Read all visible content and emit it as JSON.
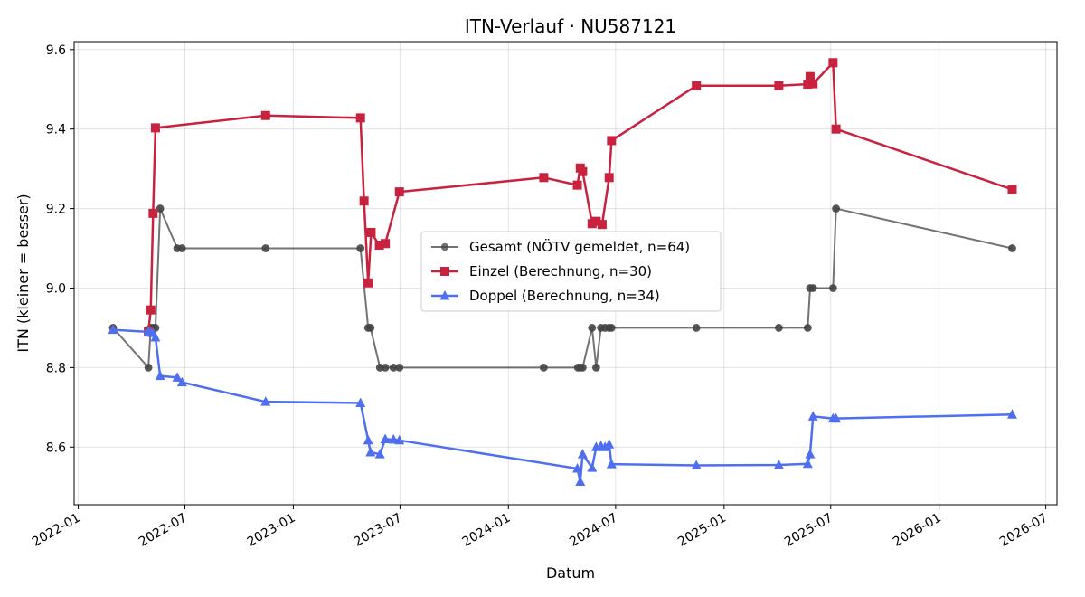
{
  "chart_data": {
    "type": "line",
    "title": "ITN-Verlauf · NU587121",
    "xlabel": "Datum",
    "ylabel": "ITN  (kleiner = besser)",
    "x_ticks": [
      "2022-01",
      "2022-07",
      "2023-01",
      "2023-07",
      "2024-01",
      "2024-07",
      "2025-01",
      "2025-07",
      "2026-01",
      "2026-07"
    ],
    "y_ticks": [
      "8.6",
      "8.8",
      "9.0",
      "9.2",
      "9.4",
      "9.6"
    ],
    "xlim": [
      "2021-12-25",
      "2026-07-20"
    ],
    "ylim": [
      8.455,
      9.62
    ],
    "grid": true,
    "legend_position": "center",
    "series": [
      {
        "name": "Gesamt (NÖTV gemeldet, n=64)",
        "color": "#444444",
        "marker": "circle",
        "points": [
          [
            "2022-03-01",
            8.9
          ],
          [
            "2022-04-30",
            8.8
          ],
          [
            "2022-05-04",
            8.9
          ],
          [
            "2022-05-08",
            8.9
          ],
          [
            "2022-05-12",
            8.9
          ],
          [
            "2022-05-20",
            9.2
          ],
          [
            "2022-06-18",
            9.1
          ],
          [
            "2022-06-26",
            9.1
          ],
          [
            "2022-11-15",
            9.1
          ],
          [
            "2023-04-25",
            9.1
          ],
          [
            "2023-05-08",
            8.9
          ],
          [
            "2023-05-12",
            8.9
          ],
          [
            "2023-05-28",
            8.8
          ],
          [
            "2023-06-06",
            8.8
          ],
          [
            "2023-06-20",
            8.8
          ],
          [
            "2023-06-30",
            8.8
          ],
          [
            "2024-03-01",
            8.8
          ],
          [
            "2024-04-28",
            8.8
          ],
          [
            "2024-05-02",
            8.8
          ],
          [
            "2024-05-06",
            8.8
          ],
          [
            "2024-05-22",
            8.9
          ],
          [
            "2024-05-29",
            8.8
          ],
          [
            "2024-06-06",
            8.9
          ],
          [
            "2024-06-13",
            8.9
          ],
          [
            "2024-06-20",
            8.9
          ],
          [
            "2024-06-24",
            8.9
          ],
          [
            "2024-11-15",
            8.9
          ],
          [
            "2025-04-04",
            8.9
          ],
          [
            "2025-05-23",
            8.9
          ],
          [
            "2025-05-27",
            9.0
          ],
          [
            "2025-06-01",
            9.0
          ],
          [
            "2025-07-05",
            9.0
          ],
          [
            "2025-07-10",
            9.2
          ],
          [
            "2026-05-05",
            9.1
          ]
        ]
      },
      {
        "name": "Einzel (Berechnung, n=30)",
        "color": "#c8223f",
        "marker": "square",
        "points": [
          [
            "2022-04-30",
            8.89
          ],
          [
            "2022-05-04",
            8.945
          ],
          [
            "2022-05-08",
            9.188
          ],
          [
            "2022-05-12",
            9.403
          ],
          [
            "2022-11-15",
            9.434
          ],
          [
            "2023-04-25",
            9.428
          ],
          [
            "2023-05-01",
            9.219
          ],
          [
            "2023-05-08",
            9.013
          ],
          [
            "2023-05-13",
            9.14
          ],
          [
            "2023-05-27",
            9.108
          ],
          [
            "2023-06-06",
            9.112
          ],
          [
            "2023-06-30",
            9.242
          ],
          [
            "2024-03-01",
            9.278
          ],
          [
            "2024-04-27",
            9.259
          ],
          [
            "2024-05-02",
            9.302
          ],
          [
            "2024-05-06",
            9.293
          ],
          [
            "2024-05-22",
            9.162
          ],
          [
            "2024-05-29",
            9.168
          ],
          [
            "2024-06-08",
            9.16
          ],
          [
            "2024-06-20",
            9.278
          ],
          [
            "2024-06-24",
            9.371
          ],
          [
            "2024-11-15",
            9.509
          ],
          [
            "2025-04-04",
            9.509
          ],
          [
            "2025-05-23",
            9.513
          ],
          [
            "2025-05-27",
            9.532
          ],
          [
            "2025-06-01",
            9.514
          ],
          [
            "2025-07-05",
            9.567
          ],
          [
            "2025-07-10",
            9.4
          ],
          [
            "2026-05-05",
            9.248
          ]
        ]
      },
      {
        "name": "Doppel (Berechnung, n=34)",
        "color": "#4f6ff0",
        "marker": "triangle",
        "points": [
          [
            "2022-03-01",
            8.895
          ],
          [
            "2022-04-30",
            8.89
          ],
          [
            "2022-05-04",
            8.888
          ],
          [
            "2022-05-08",
            8.887
          ],
          [
            "2022-05-12",
            8.876
          ],
          [
            "2022-05-20",
            8.779
          ],
          [
            "2022-06-18",
            8.775
          ],
          [
            "2022-06-26",
            8.763
          ],
          [
            "2022-11-15",
            8.714
          ],
          [
            "2023-04-25",
            8.711
          ],
          [
            "2023-05-08",
            8.617
          ],
          [
            "2023-05-12",
            8.587
          ],
          [
            "2023-05-28",
            8.582
          ],
          [
            "2023-06-06",
            8.62
          ],
          [
            "2023-06-20",
            8.619
          ],
          [
            "2023-06-30",
            8.617
          ],
          [
            "2024-04-27",
            8.546
          ],
          [
            "2024-05-02",
            8.513
          ],
          [
            "2024-05-06",
            8.582
          ],
          [
            "2024-05-22",
            8.548
          ],
          [
            "2024-05-29",
            8.6
          ],
          [
            "2024-06-06",
            8.603
          ],
          [
            "2024-06-13",
            8.6
          ],
          [
            "2024-06-20",
            8.607
          ],
          [
            "2024-06-24",
            8.557
          ],
          [
            "2024-11-15",
            8.554
          ],
          [
            "2025-04-04",
            8.555
          ],
          [
            "2025-05-23",
            8.558
          ],
          [
            "2025-05-27",
            8.582
          ],
          [
            "2025-06-01",
            8.677
          ],
          [
            "2025-07-05",
            8.672
          ],
          [
            "2025-07-10",
            8.672
          ],
          [
            "2026-05-05",
            8.682
          ]
        ]
      }
    ]
  }
}
